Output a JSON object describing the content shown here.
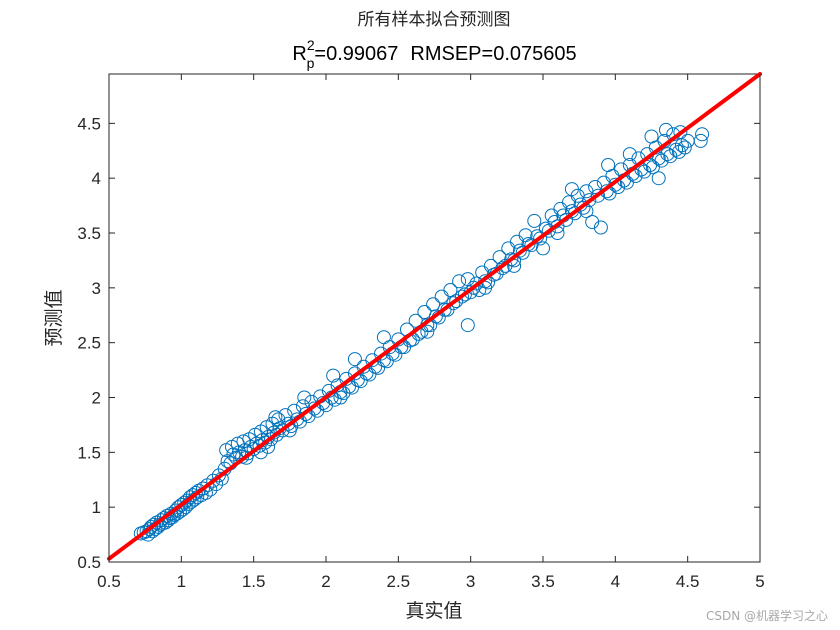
{
  "chart_data": {
    "type": "scatter",
    "title": "所有样本拟合预测图",
    "subtitle": {
      "r_symbol": "R",
      "r_superscript": "2",
      "r_subscript": "p",
      "r_value_text": "=0.99067",
      "rmsep_text": "RMSEP=0.075605"
    },
    "xlabel": "真实值",
    "ylabel": "预测值",
    "xlim": [
      0.5,
      5
    ],
    "ylim": [
      0.5,
      4.95
    ],
    "xticks": [
      0.5,
      1,
      1.5,
      2,
      2.5,
      3,
      3.5,
      4,
      4.5,
      5
    ],
    "xtick_labels": [
      "0.5",
      "1",
      "1.5",
      "2",
      "2.5",
      "3",
      "3.5",
      "4",
      "4.5",
      "5"
    ],
    "yticks": [
      0.5,
      1,
      1.5,
      2,
      2.5,
      3,
      3.5,
      4,
      4.5
    ],
    "ytick_labels": [
      "0.5",
      "1",
      "1.5",
      "2",
      "2.5",
      "3",
      "3.5",
      "4",
      "4.5"
    ],
    "grid": false,
    "marker": "open-circle",
    "marker_color": "#0072BD",
    "fit_line_color": "#FF0000",
    "fit_line": {
      "x": [
        0.5,
        5
      ],
      "y": [
        0.53,
        4.97
      ]
    },
    "points": [
      [
        0.72,
        0.76
      ],
      [
        0.74,
        0.77
      ],
      [
        0.76,
        0.78
      ],
      [
        0.77,
        0.75
      ],
      [
        0.78,
        0.8
      ],
      [
        0.79,
        0.82
      ],
      [
        0.8,
        0.78
      ],
      [
        0.81,
        0.84
      ],
      [
        0.82,
        0.8
      ],
      [
        0.83,
        0.86
      ],
      [
        0.84,
        0.82
      ],
      [
        0.85,
        0.84
      ],
      [
        0.86,
        0.88
      ],
      [
        0.87,
        0.85
      ],
      [
        0.88,
        0.9
      ],
      [
        0.89,
        0.86
      ],
      [
        0.9,
        0.92
      ],
      [
        0.91,
        0.88
      ],
      [
        0.92,
        0.9
      ],
      [
        0.93,
        0.94
      ],
      [
        0.94,
        0.91
      ],
      [
        0.95,
        0.93
      ],
      [
        0.96,
        0.97
      ],
      [
        0.97,
        0.94
      ],
      [
        0.98,
        1.0
      ],
      [
        0.99,
        0.96
      ],
      [
        1.0,
        1.02
      ],
      [
        1.01,
        0.98
      ],
      [
        1.02,
        1.04
      ],
      [
        1.03,
        1.0
      ],
      [
        1.04,
        1.06
      ],
      [
        1.05,
        1.03
      ],
      [
        1.06,
        1.09
      ],
      [
        1.07,
        1.05
      ],
      [
        1.08,
        1.11
      ],
      [
        1.09,
        1.07
      ],
      [
        1.1,
        1.13
      ],
      [
        1.11,
        1.09
      ],
      [
        1.12,
        1.15
      ],
      [
        1.14,
        1.11
      ],
      [
        1.15,
        1.17
      ],
      [
        1.17,
        1.13
      ],
      [
        1.18,
        1.2
      ],
      [
        1.2,
        1.16
      ],
      [
        1.22,
        1.24
      ],
      [
        1.24,
        1.21
      ],
      [
        1.26,
        1.29
      ],
      [
        1.28,
        1.26
      ],
      [
        1.3,
        1.35
      ],
      [
        1.31,
        1.52
      ],
      [
        1.32,
        1.42
      ],
      [
        1.34,
        1.4
      ],
      [
        1.35,
        1.55
      ],
      [
        1.36,
        1.48
      ],
      [
        1.38,
        1.45
      ],
      [
        1.39,
        1.58
      ],
      [
        1.4,
        1.5
      ],
      [
        1.42,
        1.46
      ],
      [
        1.43,
        1.6
      ],
      [
        1.44,
        1.52
      ],
      [
        1.46,
        1.49
      ],
      [
        1.47,
        1.62
      ],
      [
        1.48,
        1.55
      ],
      [
        1.5,
        1.53
      ],
      [
        1.51,
        1.66
      ],
      [
        1.52,
        1.58
      ],
      [
        1.54,
        1.56
      ],
      [
        1.55,
        1.69
      ],
      [
        1.56,
        1.61
      ],
      [
        1.58,
        1.59
      ],
      [
        1.59,
        1.73
      ],
      [
        1.6,
        1.64
      ],
      [
        1.62,
        1.62
      ],
      [
        1.63,
        1.76
      ],
      [
        1.64,
        1.68
      ],
      [
        1.66,
        1.66
      ],
      [
        1.67,
        1.8
      ],
      [
        1.68,
        1.72
      ],
      [
        1.7,
        1.7
      ],
      [
        1.72,
        1.84
      ],
      [
        1.74,
        1.76
      ],
      [
        1.76,
        1.74
      ],
      [
        1.78,
        1.88
      ],
      [
        1.8,
        1.8
      ],
      [
        1.82,
        1.78
      ],
      [
        1.84,
        1.92
      ],
      [
        1.86,
        1.85
      ],
      [
        1.88,
        1.83
      ],
      [
        1.9,
        1.96
      ],
      [
        1.92,
        1.9
      ],
      [
        1.94,
        1.88
      ],
      [
        1.96,
        2.01
      ],
      [
        1.98,
        1.95
      ],
      [
        2.0,
        1.93
      ],
      [
        2.02,
        2.06
      ],
      [
        2.04,
        2.0
      ],
      [
        2.06,
        1.98
      ],
      [
        2.08,
        2.11
      ],
      [
        2.1,
        2.05
      ],
      [
        2.12,
        2.04
      ],
      [
        2.14,
        2.17
      ],
      [
        2.16,
        2.1
      ],
      [
        2.18,
        2.09
      ],
      [
        2.2,
        2.22
      ],
      [
        2.22,
        2.16
      ],
      [
        2.24,
        2.15
      ],
      [
        2.26,
        2.28
      ],
      [
        2.28,
        2.22
      ],
      [
        2.3,
        2.21
      ],
      [
        2.32,
        2.34
      ],
      [
        2.34,
        2.28
      ],
      [
        2.36,
        2.27
      ],
      [
        2.38,
        2.4
      ],
      [
        2.4,
        2.34
      ],
      [
        2.42,
        2.33
      ],
      [
        2.44,
        2.46
      ],
      [
        2.46,
        2.4
      ],
      [
        2.48,
        2.39
      ],
      [
        2.5,
        2.53
      ],
      [
        2.52,
        2.46
      ],
      [
        2.54,
        2.46
      ],
      [
        2.56,
        2.62
      ],
      [
        2.58,
        2.52
      ],
      [
        2.6,
        2.53
      ],
      [
        2.62,
        2.7
      ],
      [
        2.64,
        2.58
      ],
      [
        2.66,
        2.6
      ],
      [
        2.68,
        2.78
      ],
      [
        2.7,
        2.66
      ],
      [
        2.72,
        2.66
      ],
      [
        2.74,
        2.85
      ],
      [
        2.76,
        2.74
      ],
      [
        2.78,
        2.73
      ],
      [
        2.8,
        2.92
      ],
      [
        2.82,
        2.8
      ],
      [
        2.84,
        2.8
      ],
      [
        2.86,
        2.98
      ],
      [
        2.88,
        2.86
      ],
      [
        2.9,
        2.88
      ],
      [
        2.92,
        3.06
      ],
      [
        2.94,
        2.92
      ],
      [
        2.96,
        2.94
      ],
      [
        2.98,
        3.08
      ],
      [
        3.0,
        2.96
      ],
      [
        2.98,
        2.66
      ],
      [
        3.02,
        3.0
      ],
      [
        3.04,
        3.04
      ],
      [
        3.06,
        2.98
      ],
      [
        3.08,
        3.14
      ],
      [
        3.1,
        3.06
      ],
      [
        3.12,
        3.05
      ],
      [
        3.14,
        3.2
      ],
      [
        3.16,
        3.12
      ],
      [
        3.18,
        3.13
      ],
      [
        3.2,
        3.28
      ],
      [
        3.22,
        3.18
      ],
      [
        3.24,
        3.2
      ],
      [
        3.26,
        3.36
      ],
      [
        3.28,
        3.26
      ],
      [
        3.3,
        3.25
      ],
      [
        3.32,
        3.42
      ],
      [
        3.34,
        3.34
      ],
      [
        3.36,
        3.32
      ],
      [
        3.38,
        3.48
      ],
      [
        3.4,
        3.4
      ],
      [
        3.42,
        3.39
      ],
      [
        3.44,
        3.61
      ],
      [
        3.46,
        3.47
      ],
      [
        3.48,
        3.45
      ],
      [
        3.5,
        3.36
      ],
      [
        3.52,
        3.54
      ],
      [
        3.54,
        3.52
      ],
      [
        3.56,
        3.66
      ],
      [
        3.58,
        3.6
      ],
      [
        3.6,
        3.56
      ],
      [
        3.62,
        3.72
      ],
      [
        3.64,
        3.66
      ],
      [
        3.66,
        3.62
      ],
      [
        3.68,
        3.78
      ],
      [
        3.7,
        3.7
      ],
      [
        3.72,
        3.68
      ],
      [
        3.74,
        3.84
      ],
      [
        3.76,
        3.76
      ],
      [
        3.78,
        3.73
      ],
      [
        3.8,
        3.88
      ],
      [
        3.82,
        3.8
      ],
      [
        3.84,
        3.6
      ],
      [
        3.86,
        3.92
      ],
      [
        3.88,
        3.84
      ],
      [
        3.9,
        3.55
      ],
      [
        3.92,
        3.96
      ],
      [
        3.94,
        3.88
      ],
      [
        3.96,
        3.86
      ],
      [
        3.98,
        4.02
      ],
      [
        4.0,
        3.94
      ],
      [
        4.02,
        3.92
      ],
      [
        4.04,
        4.08
      ],
      [
        4.06,
        3.98
      ],
      [
        4.08,
        3.96
      ],
      [
        4.1,
        4.12
      ],
      [
        4.12,
        4.04
      ],
      [
        4.14,
        4.02
      ],
      [
        4.16,
        4.18
      ],
      [
        4.18,
        4.08
      ],
      [
        4.2,
        4.06
      ],
      [
        4.22,
        4.22
      ],
      [
        4.24,
        4.12
      ],
      [
        4.26,
        4.1
      ],
      [
        4.28,
        4.28
      ],
      [
        4.3,
        4.18
      ],
      [
        4.32,
        4.16
      ],
      [
        4.34,
        4.34
      ],
      [
        4.36,
        4.22
      ],
      [
        4.38,
        4.2
      ],
      [
        4.4,
        4.4
      ],
      [
        4.42,
        4.26
      ],
      [
        4.44,
        4.24
      ],
      [
        4.46,
        4.3
      ],
      [
        4.48,
        4.28
      ],
      [
        4.5,
        4.34
      ],
      [
        4.6,
        4.4
      ],
      [
        4.59,
        4.34
      ],
      [
        4.3,
        4.0
      ],
      [
        4.1,
        4.22
      ],
      [
        3.95,
        4.12
      ],
      [
        4.25,
        4.38
      ],
      [
        4.35,
        4.44
      ],
      [
        4.45,
        4.42
      ],
      [
        3.7,
        3.9
      ],
      [
        2.4,
        2.55
      ],
      [
        2.2,
        2.35
      ],
      [
        2.05,
        2.2
      ],
      [
        1.85,
        2.0
      ],
      [
        1.65,
        1.82
      ],
      [
        1.45,
        1.45
      ],
      [
        1.55,
        1.5
      ],
      [
        1.6,
        1.55
      ],
      [
        1.75,
        1.7
      ],
      [
        2.1,
        2.0
      ],
      [
        2.7,
        2.6
      ],
      [
        3.1,
        3.0
      ],
      [
        3.3,
        3.2
      ],
      [
        3.6,
        3.5
      ],
      [
        3.8,
        3.7
      ]
    ]
  },
  "watermark": "CSDN @机器学习之心"
}
